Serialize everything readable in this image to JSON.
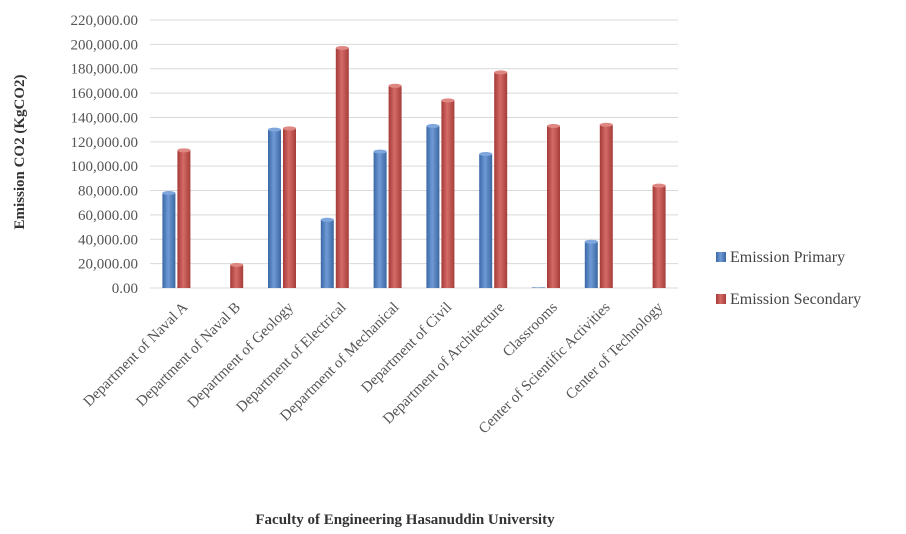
{
  "chart_data": {
    "type": "bar",
    "title": "",
    "xlabel": "Faculty of Engineering Hasanuddin University",
    "ylabel": "Emission CO2 (KgCO2)",
    "ylim": [
      0,
      220000
    ],
    "yticks": [
      0,
      20000,
      40000,
      60000,
      80000,
      100000,
      120000,
      140000,
      160000,
      180000,
      200000,
      220000
    ],
    "ytick_labels": [
      "0.00",
      "20,000.00",
      "40,000.00",
      "60,000.00",
      "80,000.00",
      "100,000.00",
      "120,000.00",
      "140,000.00",
      "160,000.00",
      "180,000.00",
      "200,000.00",
      "220,000.00"
    ],
    "grid": true,
    "legend_position": "right",
    "categories": [
      "Department of Naval A",
      "Department of Naval B",
      "Department of Geology",
      "Department of Electrical",
      "Department of Mechanical",
      "Department of Civil",
      "Department of Architecture",
      "Classrooms",
      "Center of Scientific Activities",
      "Center of Technology"
    ],
    "series": [
      {
        "name": "Emission Primary",
        "color": "#4f81bd",
        "values": [
          78000,
          0,
          130000,
          56000,
          112000,
          133000,
          110000,
          500,
          38000,
          0
        ]
      },
      {
        "name": "Emission Secondary",
        "color": "#c0504d",
        "values": [
          113000,
          19000,
          131000,
          197000,
          166000,
          154000,
          177000,
          133000,
          134000,
          84000
        ]
      }
    ]
  }
}
